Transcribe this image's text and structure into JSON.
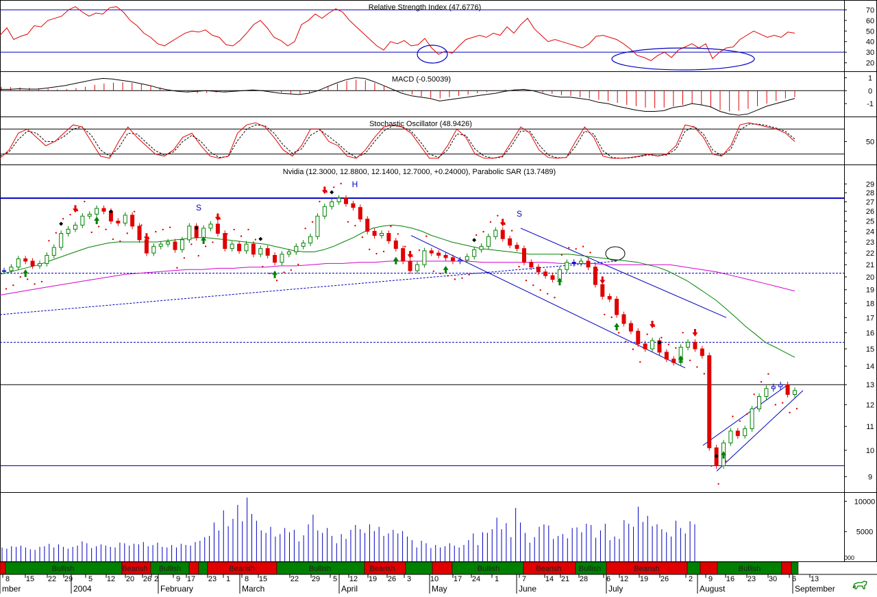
{
  "colors": {
    "background": "#ffffff",
    "frame": "#000000",
    "rsi_line": "#e00000",
    "level_line": "#0000c0",
    "macd_line": "#000000",
    "macd_hist": "#e00000",
    "stoch_k": "#e00000",
    "stoch_d": "#000000",
    "up_candle": "#008000",
    "down_candle": "#e00000",
    "flat_candle": "#0000c0",
    "sma_short": "#008000",
    "sma_long": "#d000d0",
    "sar_dots": "#e00000",
    "volume_bar": "#0000c0",
    "bullish_band": "#008000",
    "bearish_band": "#e00000",
    "arrow_up": "#008000",
    "arrow_down": "#e00000",
    "marker_diamond": "#000000",
    "annotation_ellipse": "#0000c0"
  },
  "icons": {
    "logo": "bull-logo-icon",
    "arrow_up": "buy-arrow-icon",
    "arrow_down": "sell-arrow-icon"
  },
  "chart_data": [
    {
      "panel": "rsi",
      "type": "line",
      "title": "Relative Strength Index (47.6776)",
      "ytick_labels": [
        "70",
        "60",
        "50",
        "40",
        "30",
        "20"
      ],
      "ylim": [
        12,
        78
      ],
      "reference_levels": [
        70,
        30
      ],
      "series": [
        {
          "values": [
            46,
            53,
            42,
            45,
            47,
            55,
            54,
            60,
            62,
            64,
            70,
            73,
            68,
            64,
            67,
            66,
            72,
            73,
            68,
            60,
            55,
            48,
            44,
            38,
            36,
            40,
            44,
            48,
            50,
            49,
            51,
            46,
            44,
            37,
            36,
            41,
            48,
            56,
            60,
            53,
            44,
            41,
            36,
            40,
            56,
            60,
            66,
            62,
            67,
            71,
            68,
            60,
            54,
            48,
            42,
            36,
            32,
            40,
            38,
            41,
            36,
            37,
            43,
            34,
            28,
            31,
            29,
            36,
            42,
            44,
            46,
            44,
            48,
            46,
            54,
            48,
            56,
            62,
            52,
            46,
            40,
            42,
            40,
            38,
            36,
            34,
            38,
            45,
            46,
            44,
            42,
            38,
            33,
            27,
            25,
            22,
            27,
            30,
            25,
            32,
            35,
            38,
            34,
            38,
            24,
            30,
            34,
            35,
            42,
            46,
            50,
            47,
            44,
            46,
            44,
            49,
            48
          ]
        }
      ],
      "annotations": [
        "ellipse-april",
        "ellipse-june-july"
      ]
    },
    {
      "panel": "macd",
      "type": "line",
      "title": "MACD (-0.50039)",
      "ytick_labels": [
        "1",
        "0",
        "-1"
      ],
      "ylim": [
        -2.0,
        1.5
      ],
      "reference_levels": [
        0
      ],
      "series": [
        {
          "name": "MACD",
          "values": [
            0.1,
            0.1,
            0.15,
            0.12,
            0.12,
            0.2,
            0.3,
            0.4,
            0.55,
            0.7,
            0.85,
            0.95,
            0.9,
            0.8,
            0.7,
            0.55,
            0.4,
            0.2,
            0.05,
            -0.05,
            -0.1,
            -0.05,
            0.0,
            -0.05,
            -0.1,
            -0.05,
            0.0,
            0.05,
            0.0,
            -0.1,
            -0.2,
            -0.25,
            -0.3,
            -0.2,
            0.0,
            0.3,
            0.6,
            0.85,
            1.0,
            0.95,
            0.7,
            0.4,
            0.1,
            -0.2,
            -0.4,
            -0.5,
            -0.6,
            -0.8,
            -0.7,
            -0.6,
            -0.5,
            -0.4,
            -0.3,
            -0.2,
            -0.05,
            0.05,
            0.1,
            0.0,
            -0.2,
            -0.4,
            -0.5,
            -0.5,
            -0.6,
            -0.7,
            -0.9,
            -1.0,
            -1.2,
            -1.35,
            -1.5,
            -1.6,
            -1.6,
            -1.55,
            -1.3,
            -1.2,
            -1.0,
            -1.1,
            -1.25,
            -1.6,
            -1.8,
            -1.9,
            -1.8,
            -1.5,
            -1.2,
            -1.0,
            -0.8,
            -0.6
          ]
        },
        {
          "name": "Histogram",
          "values": [
            0.3,
            0.28,
            0.25,
            0.22,
            0.18,
            0.15,
            0.1,
            0.12,
            0.2,
            0.3,
            0.45,
            0.55,
            0.62,
            0.65,
            0.6,
            0.5,
            0.38,
            0.25,
            0.1,
            0.0,
            -0.1,
            -0.2,
            -0.18,
            -0.15,
            -0.1,
            -0.05,
            0.02,
            0.08,
            0.05,
            -0.05,
            -0.15,
            -0.25,
            -0.3,
            -0.2,
            0.05,
            0.3,
            0.55,
            0.75,
            0.85,
            0.8,
            0.6,
            0.35,
            0.1,
            -0.1,
            -0.3,
            -0.45,
            -0.55,
            -0.6,
            -0.5,
            -0.4,
            -0.3,
            -0.2,
            -0.1,
            0.0,
            0.08,
            0.1,
            0.05,
            -0.05,
            -0.15,
            -0.25,
            -0.35,
            -0.4,
            -0.5,
            -0.6,
            -0.7,
            -0.8,
            -0.95,
            -1.1,
            -1.2,
            -1.3,
            -1.35,
            -1.3,
            -1.2,
            -1.1,
            -1.0,
            -1.1,
            -1.3,
            -1.5,
            -1.6,
            -1.55,
            -1.4,
            -1.2,
            -1.0,
            -0.8,
            -0.6,
            -0.5
          ]
        }
      ]
    },
    {
      "panel": "stochastic",
      "type": "line",
      "title": "Stochastic Oscillator (48.9426)",
      "ytick_labels": [
        "50"
      ],
      "ylim": [
        -5,
        110
      ],
      "reference_levels": [
        80,
        20
      ],
      "series": [
        {
          "name": "%K",
          "values": [
            10,
            30,
            70,
            80,
            60,
            40,
            50,
            70,
            90,
            85,
            50,
            15,
            10,
            50,
            85,
            60,
            40,
            20,
            15,
            30,
            60,
            70,
            40,
            15,
            10,
            15,
            70,
            90,
            95,
            85,
            60,
            30,
            15,
            40,
            80,
            80,
            50,
            40,
            15,
            10,
            30,
            60,
            85,
            90,
            85,
            70,
            40,
            10,
            10,
            40,
            80,
            60,
            20,
            10,
            10,
            15,
            50,
            85,
            70,
            30,
            12,
            10,
            12,
            50,
            85,
            60,
            15,
            10,
            10,
            12,
            15,
            20,
            15,
            20,
            40,
            90,
            85,
            60,
            20,
            15,
            40,
            90,
            95,
            90,
            85,
            80,
            70,
            50
          ]
        },
        {
          "name": "%D",
          "values": [
            15,
            25,
            55,
            75,
            70,
            50,
            50,
            62,
            80,
            85,
            65,
            30,
            15,
            35,
            70,
            68,
            48,
            28,
            18,
            25,
            50,
            65,
            50,
            25,
            12,
            14,
            52,
            80,
            90,
            88,
            70,
            42,
            22,
            32,
            65,
            78,
            62,
            45,
            25,
            12,
            22,
            50,
            75,
            88,
            86,
            75,
            50,
            20,
            12,
            30,
            68,
            65,
            32,
            15,
            10,
            13,
            40,
            75,
            75,
            42,
            18,
            11,
            12,
            38,
            75,
            68,
            28,
            12,
            10,
            11,
            14,
            18,
            16,
            18,
            32,
            75,
            86,
            68,
            30,
            16,
            32,
            78,
            92,
            92,
            88,
            82,
            74,
            56
          ]
        }
      ]
    },
    {
      "panel": "price",
      "type": "candlestick",
      "title": "Nvidia (12.3000, 12.8800, 12.1400, 12.7000, +0.24000), Parabolic SAR (13.7489)",
      "ytick_labels": [
        "29",
        "28",
        "27",
        "26",
        "25",
        "24",
        "23",
        "22",
        "21",
        "20",
        "19",
        "18",
        "17",
        "16",
        "15",
        "14",
        "13",
        "12",
        "11",
        "10",
        "9"
      ],
      "log_scale": true,
      "ylim": [
        8.6,
        30.0
      ],
      "close": [
        20.5,
        20.8,
        21.5,
        21.3,
        20.9,
        21.1,
        21.8,
        22.5,
        23.8,
        24.2,
        24.6,
        25.5,
        25.7,
        26.3,
        26.0,
        25.0,
        24.8,
        25.6,
        24.5,
        23.2,
        22.0,
        22.6,
        22.8,
        23.0,
        22.3,
        23.2,
        24.5,
        23.4,
        24.3,
        24.7,
        23.8,
        22.4,
        22.8,
        22.2,
        22.8,
        21.9,
        22.4,
        21.8,
        21.2,
        21.9,
        22.1,
        22.6,
        22.9,
        23.5,
        25.5,
        26.5,
        27.0,
        27.4,
        26.8,
        26.4,
        25.2,
        24.0,
        23.6,
        23.8,
        23.1,
        22.4,
        21.3,
        20.5,
        21.0,
        22.2,
        22.0,
        21.8,
        21.6,
        21.3,
        21.4,
        21.7,
        22.3,
        22.6,
        23.5,
        24.1,
        23.3,
        22.7,
        22.4,
        21.2,
        20.8,
        20.4,
        20.1,
        19.8,
        20.6,
        21.2,
        21.1,
        21.3,
        20.8,
        19.4,
        18.5,
        18.3,
        17.2,
        16.6,
        16.1,
        15.3,
        15.0,
        15.5,
        14.8,
        14.4,
        14.2,
        15.1,
        15.4,
        15.0,
        14.6,
        10.1,
        9.4,
        10.3,
        10.8,
        10.6,
        10.9,
        11.8,
        12.4,
        12.8,
        12.9,
        13.0,
        12.5,
        12.7
      ],
      "overlays": [
        {
          "name": "SMA short",
          "values": [
            20.2,
            20.4,
            20.6,
            20.8,
            21.0,
            21.3,
            21.6,
            21.9,
            22.2,
            22.5,
            22.7,
            22.9,
            23.0,
            23.0,
            23.0,
            23.0,
            23.0,
            23.1,
            23.2,
            23.3,
            23.4,
            23.4,
            23.3,
            23.2,
            23.1,
            23.0,
            22.9,
            22.8,
            22.6,
            22.4,
            22.2,
            22.1,
            22.1,
            22.3,
            22.6,
            23.0,
            23.4,
            23.9,
            24.3,
            24.5,
            24.6,
            24.5,
            24.3,
            24.0,
            23.6,
            23.3,
            23.0,
            22.8,
            22.6,
            22.4,
            22.3,
            22.2,
            22.1,
            22.0,
            21.9,
            21.9,
            21.9,
            21.9,
            21.9,
            21.8,
            21.7,
            21.6,
            21.5,
            21.4,
            21.3,
            21.2,
            21.0,
            20.8,
            20.5,
            20.1,
            19.7,
            19.2,
            18.7,
            18.2,
            17.6,
            17.0,
            16.4,
            15.9,
            15.4,
            15.1,
            14.8,
            14.5
          ]
        },
        {
          "name": "SMA long",
          "values": [
            18.6,
            18.8,
            19.0,
            19.2,
            19.4,
            19.6,
            19.8,
            20.0,
            20.2,
            20.3,
            20.4,
            20.5,
            20.6,
            20.6,
            20.7,
            20.7,
            20.8,
            20.8,
            20.9,
            20.9,
            21.0,
            21.1,
            21.1,
            21.2,
            21.2,
            21.3,
            21.3,
            21.3,
            21.3,
            21.3,
            21.3,
            21.2,
            21.2,
            21.2,
            21.2,
            21.2,
            21.1,
            21.1,
            21.1,
            21.0,
            21.0,
            21.0,
            21.0,
            21.0,
            20.8,
            20.6,
            20.4,
            20.1,
            19.8,
            19.5,
            19.2,
            18.9
          ]
        }
      ],
      "reference_levels": [
        27.4,
        20.3,
        15.4,
        13.0,
        9.4
      ],
      "patterns": [
        "S",
        "H",
        "S"
      ]
    },
    {
      "panel": "volume",
      "type": "bar",
      "ytick_labels": [
        "10000",
        "5000"
      ],
      "ylim": [
        0,
        11500
      ],
      "values": [
        2400,
        2200,
        2600,
        2500,
        2700,
        2400,
        2100,
        2000,
        2500,
        2600,
        3000,
        2400,
        2900,
        2500,
        2200,
        2500,
        2700,
        3400,
        3100,
        2300,
        2600,
        2900,
        2700,
        2500,
        2400,
        3200,
        3100,
        2700,
        3000,
        2900,
        3300,
        2600,
        2800,
        3200,
        2500,
        2400,
        2800,
        2400,
        3000,
        2800,
        2700,
        3300,
        3500,
        4100,
        4300,
        6500,
        5200,
        8500,
        5900,
        7100,
        9400,
        6700,
        10600,
        7900,
        6800,
        5200,
        4800,
        5800,
        4200,
        4600,
        5600,
        4900,
        5300,
        3400,
        4400,
        6200,
        7800,
        5200,
        4800,
        5600,
        4300,
        3100,
        4600,
        3800,
        5300,
        6100,
        5400,
        4800,
        6200,
        5100,
        5800,
        4300,
        4700,
        5300,
        4700,
        5100,
        4200,
        3600,
        2400,
        3500,
        3100,
        2300,
        2800,
        2400,
        2600,
        3100,
        2700,
        2400,
        2800,
        3600,
        4700,
        2800,
        4900,
        4800,
        5400,
        7300,
        5400,
        6400,
        4100,
        8900,
        6500,
        4800,
        3200,
        4100,
        5800,
        6200,
        6000,
        3800,
        4300,
        4600,
        3900,
        5600,
        5700,
        4900,
        6300,
        6100,
        4000,
        5200,
        6300,
        3600,
        4200,
        3800,
        6900,
        6300,
        5800,
        9100,
        6600,
        7600,
        5900,
        6200,
        5400,
        4900,
        4200,
        6800,
        5600,
        4700,
        6700,
        6200
      ]
    }
  ],
  "signal_band": {
    "labels": [
      "Bullish",
      "Bearish",
      "Bullish",
      "Bearish",
      "Bullish",
      "Bearish",
      "Bullish",
      "Bearish",
      "Bullish",
      "Bearish",
      "Bullish"
    ]
  },
  "date_axis": {
    "labels": [
      "mber",
      "2004",
      "February",
      "March",
      "April",
      "May",
      "June",
      "July",
      "August",
      "September"
    ],
    "days": [
      "8",
      "15",
      "22",
      "29",
      "5",
      "12",
      "20",
      "26",
      "2",
      "9",
      "17",
      "23",
      "1",
      "8",
      "15",
      "22",
      "29",
      "5",
      "12",
      "19",
      "26",
      "3",
      "10",
      "17",
      "24",
      "1",
      "7",
      "14",
      "21",
      "28",
      "6",
      "12",
      "19",
      "26",
      "2",
      "9",
      "16",
      "23",
      "30",
      "6",
      "13"
    ]
  },
  "misc": {
    "volume_corner_label": "000"
  }
}
